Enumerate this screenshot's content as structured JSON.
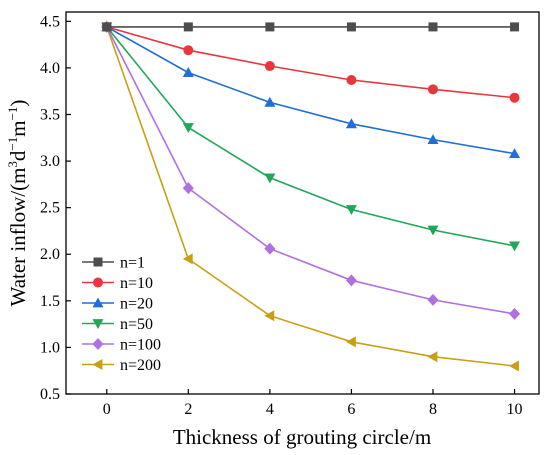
{
  "chart_data": {
    "type": "line",
    "title": "",
    "xlabel": "Thickness of grouting circle/m",
    "ylabel_prefix": "Water inflow/(m",
    "ylabel_sup1": "3",
    "ylabel_mid1": "d",
    "ylabel_sup2": "−1",
    "ylabel_mid2": "m",
    "ylabel_sup3": "−1",
    "ylabel_suffix": ")",
    "xlim": [
      -1.0,
      10.6
    ],
    "ylim": [
      0.5,
      4.6
    ],
    "xticks": [
      0,
      2,
      4,
      6,
      8,
      10
    ],
    "yticks": [
      0.5,
      1.0,
      1.5,
      2.0,
      2.5,
      3.0,
      3.5,
      4.0,
      4.5
    ],
    "ytick_labels": [
      "0.5",
      "1.0",
      "1.5",
      "2.0",
      "2.5",
      "3.0",
      "3.5",
      "4.0",
      "4.5"
    ],
    "grid": false,
    "legend_position": "lower-left",
    "x": [
      0,
      2,
      4,
      6,
      8,
      10
    ],
    "series": [
      {
        "name": "n=1",
        "marker": "square",
        "color": "#4d4d4d",
        "values": [
          4.44,
          4.44,
          4.44,
          4.44,
          4.44,
          4.44
        ]
      },
      {
        "name": "n=10",
        "marker": "circle",
        "color": "#e8363b",
        "values": [
          4.44,
          4.19,
          4.02,
          3.87,
          3.77,
          3.68
        ]
      },
      {
        "name": "n=20",
        "marker": "triangle-up",
        "color": "#1f6fd6",
        "values": [
          4.44,
          3.95,
          3.63,
          3.4,
          3.23,
          3.08
        ]
      },
      {
        "name": "n=50",
        "marker": "triangle-down",
        "color": "#1fa85a",
        "values": [
          4.44,
          3.36,
          2.82,
          2.48,
          2.26,
          2.09
        ]
      },
      {
        "name": "n=100",
        "marker": "diamond",
        "color": "#b070e0",
        "values": [
          4.44,
          2.71,
          2.06,
          1.72,
          1.51,
          1.36
        ]
      },
      {
        "name": "n=200",
        "marker": "triangle-left",
        "color": "#c8a012",
        "values": [
          4.44,
          1.95,
          1.34,
          1.06,
          0.9,
          0.8
        ]
      }
    ]
  }
}
